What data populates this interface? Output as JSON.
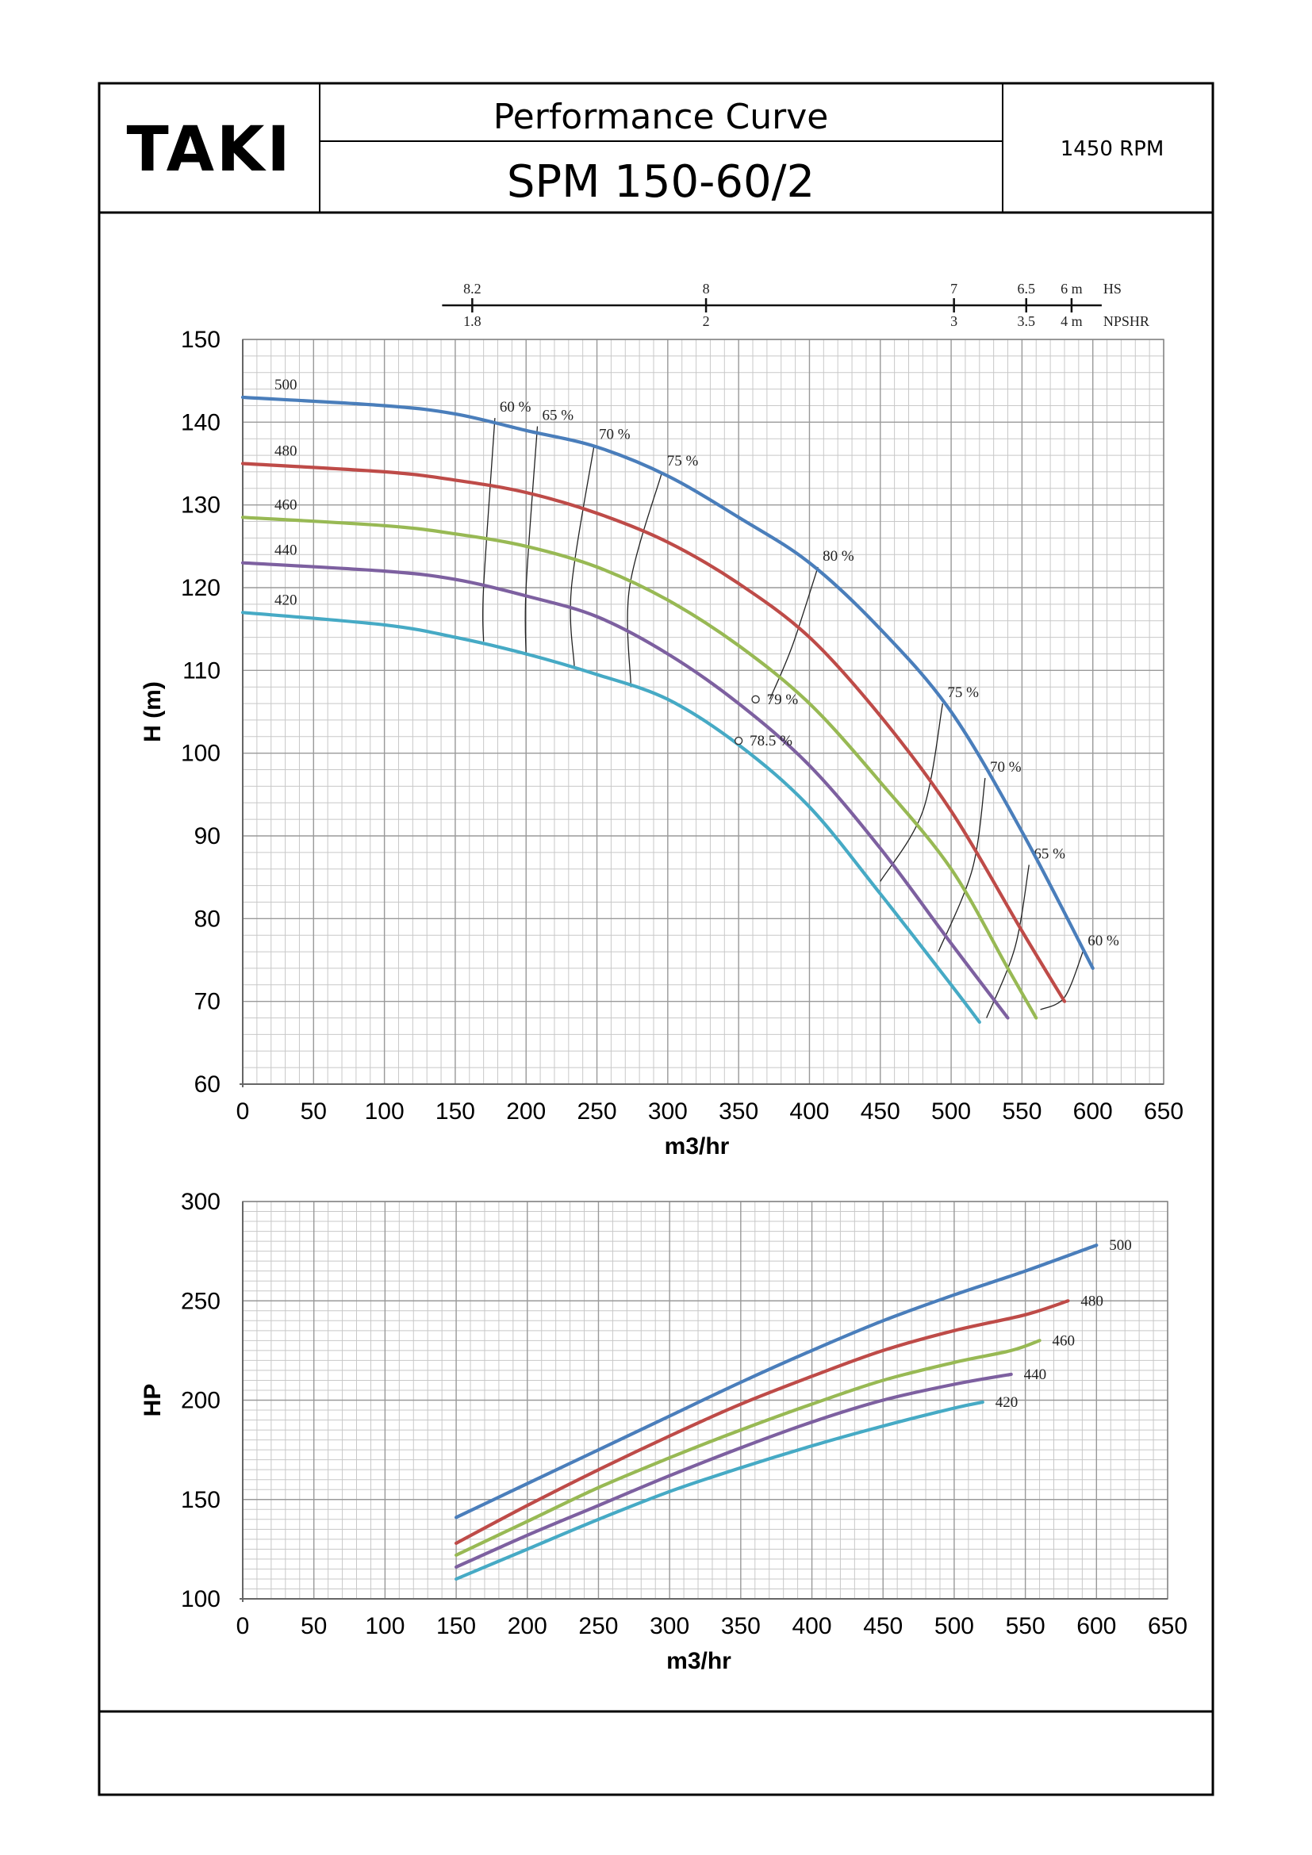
{
  "header": {
    "logo": "TAKI",
    "title": "Performance Curve",
    "model": "SPM 150-60/2",
    "speed": "1450 RPM"
  },
  "colors": {
    "500": "#4a7ebb",
    "480": "#be4b48",
    "460": "#98b954",
    "440": "#7d60a0",
    "420": "#46aac5",
    "grid": "#c8c8c8",
    "iso": "#222222"
  },
  "chart_data": [
    {
      "type": "line",
      "xlabel": "m3/hr",
      "ylabel": "H (m)",
      "xlim": [
        0,
        650
      ],
      "ylim": [
        60,
        150
      ],
      "x_ticks": [
        0,
        50,
        100,
        150,
        200,
        250,
        300,
        350,
        400,
        450,
        500,
        550,
        600,
        650
      ],
      "y_ticks": [
        60,
        70,
        80,
        90,
        100,
        110,
        120,
        130,
        140,
        150
      ],
      "grid": true,
      "series": [
        {
          "name": "500",
          "x": [
            0,
            100,
            150,
            200,
            250,
            300,
            350,
            400,
            450,
            500,
            550,
            600
          ],
          "y": [
            143,
            142,
            141,
            139,
            137,
            133.5,
            128.5,
            123,
            115,
            105,
            90.5,
            74
          ]
        },
        {
          "name": "480",
          "x": [
            0,
            100,
            150,
            200,
            250,
            300,
            350,
            400,
            450,
            500,
            550,
            580
          ],
          "y": [
            135,
            134,
            133,
            131.5,
            129,
            125.5,
            120.5,
            114,
            104.5,
            93,
            78.5,
            70
          ]
        },
        {
          "name": "460",
          "x": [
            0,
            100,
            150,
            200,
            250,
            300,
            350,
            400,
            450,
            500,
            540,
            560
          ],
          "y": [
            128.5,
            127.5,
            126.5,
            125,
            122.5,
            118.5,
            113,
            106,
            96.5,
            86,
            74,
            68
          ]
        },
        {
          "name": "440",
          "x": [
            0,
            100,
            150,
            200,
            250,
            300,
            350,
            400,
            450,
            500,
            540
          ],
          "y": [
            123,
            122,
            121,
            119,
            116.5,
            112,
            106,
            98.5,
            88.5,
            77,
            68
          ]
        },
        {
          "name": "420",
          "x": [
            0,
            100,
            150,
            200,
            250,
            300,
            350,
            400,
            450,
            500,
            520
          ],
          "y": [
            117,
            115.5,
            114,
            112,
            109.5,
            106.5,
            101,
            93.5,
            83,
            72,
            67.5
          ]
        }
      ],
      "efficiency_lines": [
        {
          "label": "60 %",
          "points": [
            [
              178,
              140.5
            ],
            [
              170,
              120
            ],
            [
              170,
              113.5
            ]
          ]
        },
        {
          "label": "65 %",
          "points": [
            [
              208,
              139.5
            ],
            [
              200,
              120
            ],
            [
              200,
              111.8
            ]
          ]
        },
        {
          "label": "70 %",
          "points": [
            [
              248,
              137.2
            ],
            [
              232,
              120
            ],
            [
              234,
              110.5
            ]
          ]
        },
        {
          "label": "75 %",
          "points": [
            [
              296,
              134
            ],
            [
              273,
              120
            ],
            [
              274,
              108
            ]
          ]
        },
        {
          "label": "80 %",
          "points": [
            [
              406,
              122.5
            ],
            [
              388,
              113
            ],
            [
              372,
              106.5
            ]
          ]
        },
        {
          "label": "75 %",
          "points": [
            [
              494,
              106
            ],
            [
              480,
              93
            ],
            [
              450,
              84.5
            ]
          ]
        },
        {
          "label": "70 %",
          "points": [
            [
              524,
              97
            ],
            [
              515,
              86
            ],
            [
              491,
              76
            ]
          ]
        },
        {
          "label": "65 %",
          "points": [
            [
              555,
              86.5
            ],
            [
              545,
              76.5
            ],
            [
              525,
              68
            ]
          ]
        },
        {
          "label": "60 %",
          "points": [
            [
              593,
              76
            ],
            [
              580,
              70.5
            ],
            [
              563,
              69
            ]
          ]
        }
      ],
      "markers": [
        {
          "label": "79 %",
          "x": 362,
          "y": 106.5
        },
        {
          "label": "78.5 %",
          "x": 350,
          "y": 101.5
        }
      ],
      "top_scale": {
        "hs_unit": "HS",
        "npshr_unit": "NPSHR",
        "ticks": [
          {
            "x": 162,
            "hs": "8.2",
            "npshr": "1.8"
          },
          {
            "x": 327,
            "hs": "8",
            "npshr": "2"
          },
          {
            "x": 502,
            "hs": "7",
            "npshr": "3"
          },
          {
            "x": 553,
            "hs": "6.5",
            "npshr": "3.5"
          },
          {
            "x": 585,
            "hs": "6 m",
            "npshr": "4 m"
          }
        ]
      }
    },
    {
      "type": "line",
      "xlabel": "m3/hr",
      "ylabel": "HP",
      "xlim": [
        0,
        650
      ],
      "ylim": [
        100,
        300
      ],
      "x_ticks": [
        0,
        50,
        100,
        150,
        200,
        250,
        300,
        350,
        400,
        450,
        500,
        550,
        600,
        650
      ],
      "y_ticks": [
        100,
        150,
        200,
        250,
        300
      ],
      "grid": true,
      "series": [
        {
          "name": "500",
          "x": [
            150,
            200,
            250,
            300,
            350,
            400,
            450,
            500,
            550,
            600
          ],
          "y": [
            141,
            158,
            175,
            192,
            209,
            225,
            240,
            253,
            265,
            278
          ]
        },
        {
          "name": "480",
          "x": [
            150,
            200,
            250,
            300,
            350,
            400,
            450,
            500,
            550,
            580
          ],
          "y": [
            128,
            147,
            165,
            182,
            198,
            212,
            225,
            235,
            243,
            250
          ]
        },
        {
          "name": "460",
          "x": [
            150,
            200,
            250,
            300,
            350,
            400,
            450,
            500,
            540,
            560
          ],
          "y": [
            122,
            139,
            156,
            171,
            185,
            198,
            210,
            219,
            225,
            230
          ]
        },
        {
          "name": "440",
          "x": [
            150,
            200,
            250,
            300,
            350,
            400,
            450,
            500,
            540
          ],
          "y": [
            116,
            132,
            147,
            162,
            176,
            189,
            200,
            208,
            213
          ]
        },
        {
          "name": "420",
          "x": [
            150,
            200,
            250,
            300,
            350,
            400,
            450,
            500,
            520
          ],
          "y": [
            110,
            125,
            140,
            154,
            166,
            177,
            187,
            196,
            199
          ]
        }
      ]
    }
  ]
}
